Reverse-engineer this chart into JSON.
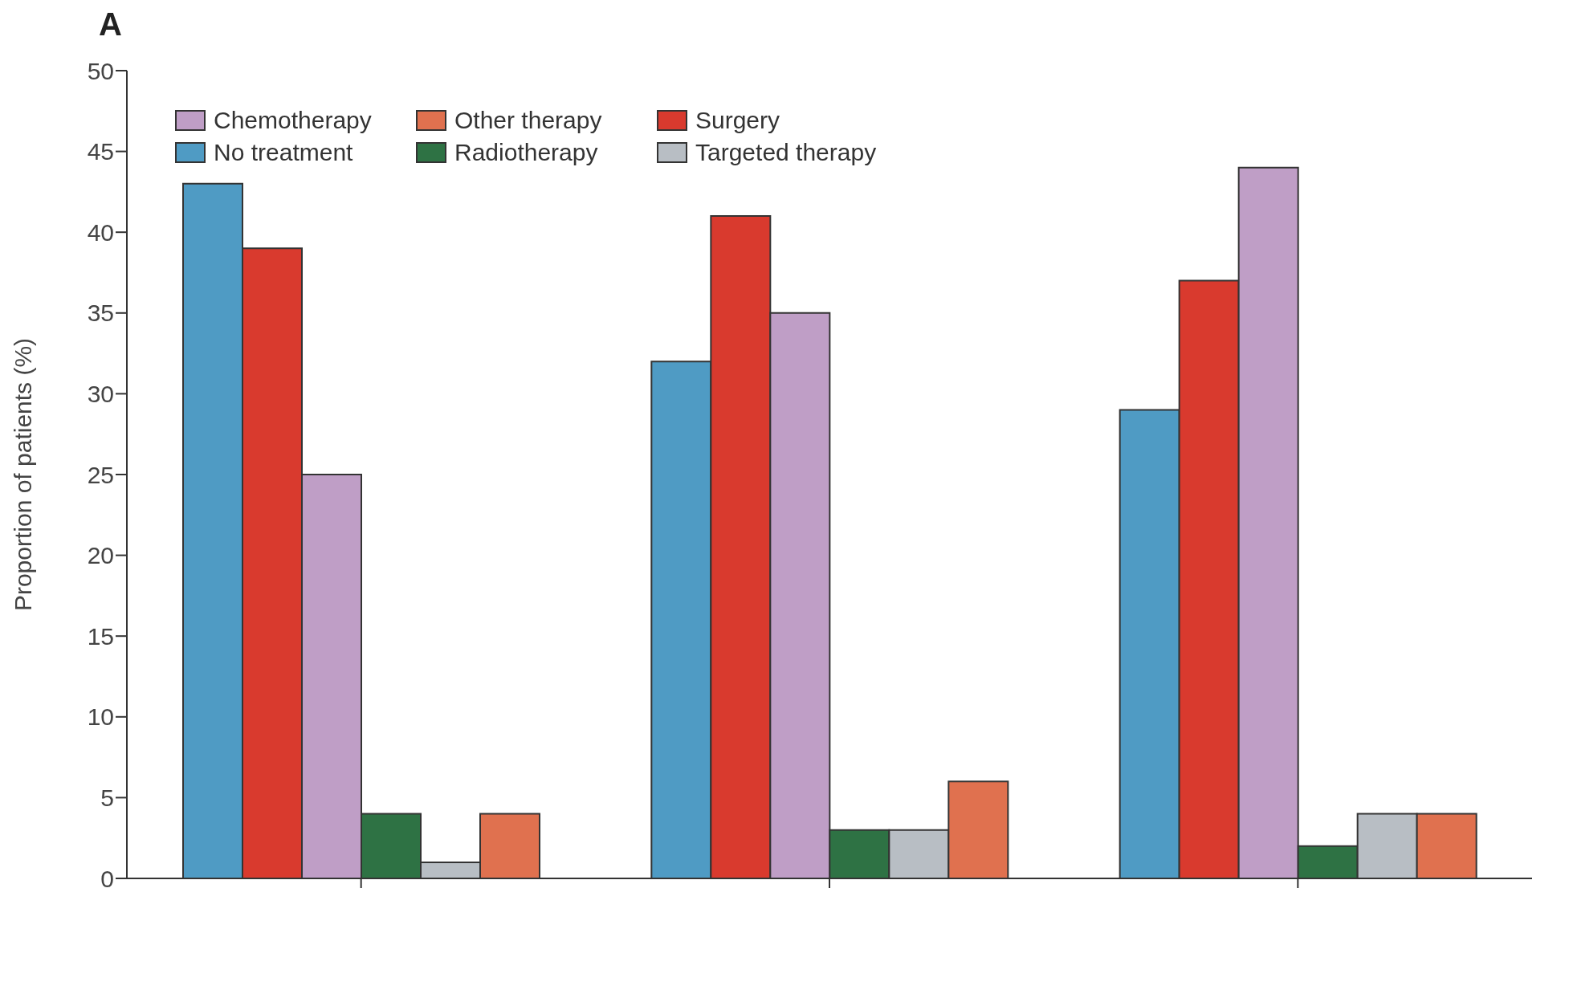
{
  "chart_data": {
    "type": "bar",
    "title": "A",
    "ylabel": "Proportion of patients (%)",
    "categories": [
      null,
      null,
      null
    ],
    "series": [
      {
        "name": "No treatment",
        "color": "#4f9bc4",
        "values": [
          43,
          32,
          29
        ]
      },
      {
        "name": "Surgery",
        "color": "#d93a2e",
        "values": [
          39,
          41,
          37
        ]
      },
      {
        "name": "Chemotherapy",
        "color": "#bf9ec6",
        "values": [
          25,
          35,
          44
        ]
      },
      {
        "name": "Radiotherapy",
        "color": "#2e7244",
        "values": [
          4,
          3,
          2
        ]
      },
      {
        "name": "Targeted therapy",
        "color": "#b8bec4",
        "values": [
          1,
          3,
          4
        ]
      },
      {
        "name": "Other therapy",
        "color": "#e0714f",
        "values": [
          4,
          6,
          4
        ]
      }
    ],
    "ylim": [
      0,
      50
    ],
    "yticks": [
      0,
      5,
      10,
      15,
      20,
      25,
      30,
      35,
      40,
      45,
      50
    ],
    "legend": "top left"
  }
}
